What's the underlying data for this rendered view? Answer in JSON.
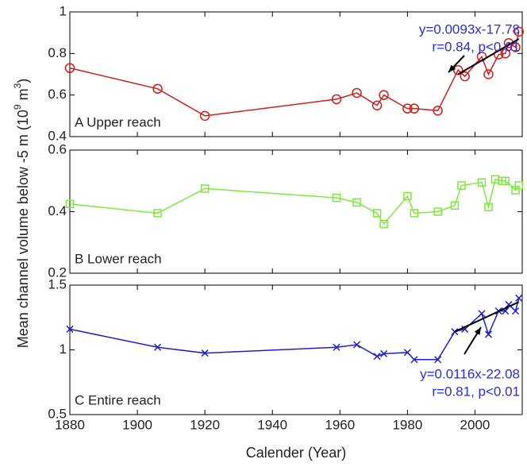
{
  "chart_data": [
    {
      "type": "line",
      "label": "A Upper reach",
      "x": [
        1880,
        1906,
        1920,
        1959,
        1965,
        1971,
        1973,
        1980,
        1982,
        1989,
        1995,
        1997,
        2002,
        2004,
        2007,
        2009,
        2010,
        2012,
        2013
      ],
      "series": [
        {
          "color": "#cc1f1f",
          "marker": "circle",
          "values": [
            0.73,
            0.63,
            0.5,
            0.58,
            0.61,
            0.55,
            0.6,
            0.535,
            0.535,
            0.525,
            0.72,
            0.69,
            0.785,
            0.7,
            0.795,
            0.8,
            0.85,
            0.83,
            0.905
          ]
        },
        {
          "color": "#000000",
          "marker": "none",
          "x": [
            1995,
            2013
          ],
          "values": [
            0.7,
            0.87
          ]
        }
      ],
      "annotations": [
        "y=0.0093x-17.78",
        "r=0.84, p<0.01"
      ],
      "xlim": [
        1880,
        2014
      ],
      "xticks": [
        1880,
        1900,
        1920,
        1940,
        1960,
        1980,
        2000
      ],
      "ylim": [
        0.4,
        1
      ],
      "yticks": [
        0.4,
        0.6,
        0.8,
        1
      ]
    },
    {
      "type": "line",
      "label": "B Lower reach",
      "ylabel": [
        "Mean channel volume below -5 m (10",
        "9",
        " m",
        "3",
        ")"
      ],
      "x": [
        1880,
        1906,
        1920,
        1959,
        1965,
        1971,
        1973,
        1980,
        1982,
        1989,
        1994,
        1996,
        2002,
        2004,
        2006,
        2008,
        2009,
        2012,
        2013
      ],
      "series": [
        {
          "color": "#7ee83c",
          "marker": "square",
          "values": [
            0.425,
            0.395,
            0.475,
            0.445,
            0.43,
            0.395,
            0.36,
            0.45,
            0.395,
            0.4,
            0.42,
            0.485,
            0.495,
            0.415,
            0.505,
            0.5,
            0.5,
            0.47,
            0.485
          ]
        }
      ],
      "xlim": [
        1880,
        2014
      ],
      "xticks": [
        1880,
        1900,
        1920,
        1940,
        1960,
        1980,
        2000
      ],
      "ylim": [
        0.2,
        0.6
      ],
      "yticks": [
        0.2,
        0.4,
        0.6
      ]
    },
    {
      "type": "line",
      "label": "C Entire reach",
      "xlabel": "Calender (Year)",
      "x": [
        1880,
        1906,
        1920,
        1959,
        1965,
        1971,
        1973,
        1980,
        1982,
        1989,
        1994,
        1997,
        2002,
        2004,
        2007,
        2009,
        2010,
        2012,
        2013
      ],
      "series": [
        {
          "color": "#1f1fcc",
          "marker": "cross",
          "values": [
            1.16,
            1.02,
            0.975,
            1.02,
            1.04,
            0.95,
            0.97,
            0.98,
            0.925,
            0.925,
            1.14,
            1.16,
            1.28,
            1.12,
            1.3,
            1.3,
            1.35,
            1.3,
            1.4
          ]
        },
        {
          "color": "#000000",
          "marker": "none",
          "x": [
            1994,
            2013
          ],
          "values": [
            1.14,
            1.37
          ]
        }
      ],
      "annotations": [
        "y=0.0116x-22.08",
        "r=0.81, p<0.01"
      ],
      "xlim": [
        1880,
        2014
      ],
      "xticks": [
        1880,
        1900,
        1920,
        1940,
        1960,
        1980,
        2000
      ],
      "ylim": [
        0.5,
        1.5
      ],
      "yticks": [
        0.5,
        1,
        1.5
      ]
    }
  ]
}
